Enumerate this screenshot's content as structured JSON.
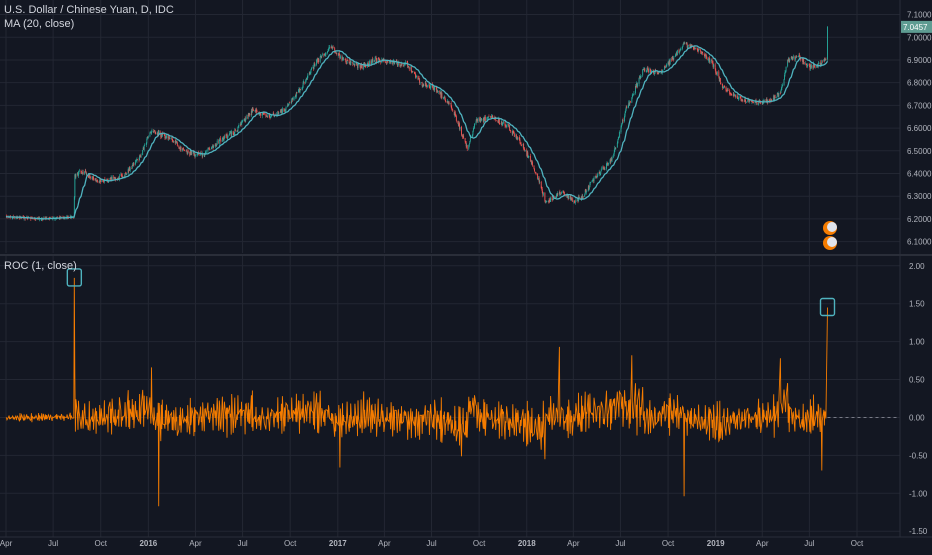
{
  "header": {
    "symbol_title": "U.S. Dollar / Chinese Yuan, D, IDC",
    "ma_label": "MA (20, close)",
    "roc_label": "ROC (1, close)"
  },
  "colors": {
    "background": "#131722",
    "grid": "#232733",
    "axis_text": "#b2b5be",
    "candle_up": "#26a69a",
    "candle_down": "#ef5350",
    "ma_line": "#4fb3bf",
    "roc_line": "#f57c00",
    "price_badge": "#5e9c92",
    "highlight_box": "#4fb3bf"
  },
  "chart_data": [
    {
      "type": "candlestick",
      "title": "U.S. Dollar / Chinese Yuan, D, IDC",
      "x_ticks": [
        "Apr",
        "Jul",
        "Oct",
        "2016",
        "Apr",
        "Jul",
        "Oct",
        "2017",
        "Apr",
        "Jul",
        "Oct",
        "2018",
        "Apr",
        "Jul",
        "Oct",
        "2019",
        "Apr",
        "Jul",
        "Oct"
      ],
      "y_ticks": [
        "7.1000",
        "7.0000",
        "6.9000",
        "6.8000",
        "6.7000",
        "6.6000",
        "6.5000",
        "6.4000",
        "6.3000",
        "6.2000",
        "6.1000"
      ],
      "ylim": [
        6.05,
        7.12
      ],
      "last_price_label": "7.0457",
      "last_price": 7.0457,
      "series": [
        {
          "name": "MA (20, close)",
          "type": "line"
        }
      ],
      "price_path": [
        [
          "2015-04-01",
          6.21
        ],
        [
          "2015-06-01",
          6.2
        ],
        [
          "2015-08-10",
          6.21
        ],
        [
          "2015-08-12",
          6.39
        ],
        [
          "2015-08-25",
          6.41
        ],
        [
          "2015-10-01",
          6.36
        ],
        [
          "2015-11-15",
          6.39
        ],
        [
          "2015-12-15",
          6.47
        ],
        [
          "2016-01-07",
          6.59
        ],
        [
          "2016-02-15",
          6.55
        ],
        [
          "2016-03-15",
          6.49
        ],
        [
          "2016-04-15",
          6.48
        ],
        [
          "2016-05-20",
          6.55
        ],
        [
          "2016-06-20",
          6.59
        ],
        [
          "2016-07-20",
          6.68
        ],
        [
          "2016-08-20",
          6.65
        ],
        [
          "2016-09-20",
          6.68
        ],
        [
          "2016-10-20",
          6.77
        ],
        [
          "2016-11-20",
          6.89
        ],
        [
          "2016-12-20",
          6.96
        ],
        [
          "2017-01-10",
          6.9
        ],
        [
          "2017-02-15",
          6.87
        ],
        [
          "2017-03-15",
          6.9
        ],
        [
          "2017-04-15",
          6.89
        ],
        [
          "2017-05-15",
          6.88
        ],
        [
          "2017-06-10",
          6.8
        ],
        [
          "2017-07-10",
          6.77
        ],
        [
          "2017-08-10",
          6.69
        ],
        [
          "2017-09-08",
          6.51
        ],
        [
          "2017-09-25",
          6.63
        ],
        [
          "2017-10-25",
          6.65
        ],
        [
          "2017-11-25",
          6.61
        ],
        [
          "2017-12-25",
          6.52
        ],
        [
          "2018-01-20",
          6.4
        ],
        [
          "2018-02-07",
          6.27
        ],
        [
          "2018-03-10",
          6.32
        ],
        [
          "2018-03-30",
          6.28
        ],
        [
          "2018-04-15",
          6.29
        ],
        [
          "2018-05-15",
          6.39
        ],
        [
          "2018-06-15",
          6.46
        ],
        [
          "2018-07-10",
          6.67
        ],
        [
          "2018-08-15",
          6.86
        ],
        [
          "2018-09-15",
          6.84
        ],
        [
          "2018-10-15",
          6.92
        ],
        [
          "2018-10-31",
          6.97
        ],
        [
          "2018-11-30",
          6.94
        ],
        [
          "2018-12-25",
          6.89
        ],
        [
          "2019-01-15",
          6.78
        ],
        [
          "2019-02-15",
          6.73
        ],
        [
          "2019-03-15",
          6.71
        ],
        [
          "2019-04-15",
          6.72
        ],
        [
          "2019-05-07",
          6.76
        ],
        [
          "2019-05-20",
          6.9
        ],
        [
          "2019-06-10",
          6.92
        ],
        [
          "2019-06-28",
          6.87
        ],
        [
          "2019-07-20",
          6.88
        ],
        [
          "2019-08-02",
          6.91
        ],
        [
          "2019-08-05",
          7.05
        ]
      ]
    },
    {
      "type": "line",
      "title": "ROC (1, close)",
      "x_ticks": [
        "Apr",
        "Jul",
        "Oct",
        "2016",
        "Apr",
        "Jul",
        "Oct",
        "2017",
        "Apr",
        "Jul",
        "Oct",
        "2018",
        "Apr",
        "Jul",
        "Oct",
        "2019",
        "Apr",
        "Jul",
        "Oct"
      ],
      "y_ticks": [
        "2.00",
        "1.50",
        "1.00",
        "0.50",
        "0.00",
        "-0.50",
        "-1.00",
        "-1.50"
      ],
      "ylim": [
        -1.55,
        2.05
      ],
      "series": [
        {
          "name": "ROC (1, close)"
        }
      ],
      "notable_points": [
        [
          "2015-08-11",
          1.84
        ],
        [
          "2016-01-07",
          0.66
        ],
        [
          "2016-01-21",
          -1.17
        ],
        [
          "2017-01-05",
          -0.66
        ],
        [
          "2018-03-05",
          0.93
        ],
        [
          "2018-07-23",
          0.82
        ],
        [
          "2018-11-01",
          -1.04
        ],
        [
          "2019-05-06",
          0.78
        ],
        [
          "2019-07-25",
          -0.7
        ],
        [
          "2019-08-05",
          1.45
        ]
      ]
    }
  ]
}
